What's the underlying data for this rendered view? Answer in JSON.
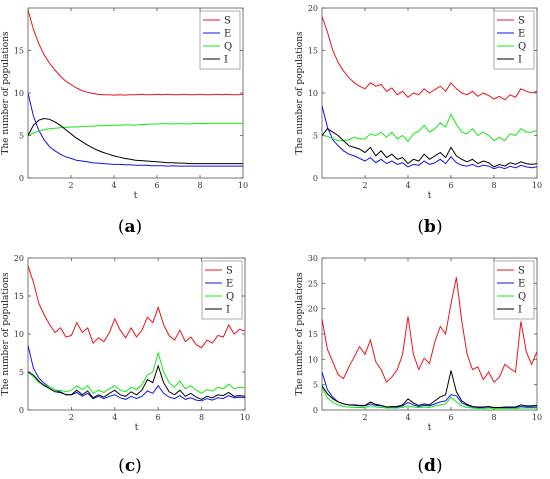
{
  "panel_labels": [
    "a",
    "b",
    "c",
    "d"
  ],
  "colors": {
    "S": "#e8141e",
    "E": "#1414e8",
    "Q": "#14e814",
    "I": "#000000"
  },
  "chart_data": [
    {
      "type": "line",
      "panel": "a",
      "xlabel": "t",
      "ylabel": "The number of populations",
      "xlim": [
        0,
        10
      ],
      "ylim": [
        0,
        20
      ],
      "xticks": [
        2,
        4,
        6,
        8,
        10
      ],
      "yticks": [
        0,
        5,
        10,
        15
      ],
      "legend": "top-right",
      "grid": false,
      "x": [
        0,
        0.25,
        0.5,
        0.75,
        1,
        1.25,
        1.5,
        1.75,
        2,
        2.25,
        2.5,
        2.75,
        3,
        3.25,
        3.5,
        3.75,
        4,
        4.25,
        4.5,
        4.75,
        5,
        5.25,
        5.5,
        5.75,
        6,
        6.25,
        6.5,
        6.75,
        7,
        7.25,
        7.5,
        7.75,
        8,
        8.25,
        8.5,
        8.75,
        9,
        9.25,
        9.5,
        9.75,
        10
      ],
      "series": [
        {
          "name": "S",
          "values": [
            19.8,
            17.5,
            15.8,
            14.5,
            13.5,
            12.7,
            12.0,
            11.4,
            11.0,
            10.6,
            10.3,
            10.1,
            9.95,
            9.85,
            9.8,
            9.8,
            9.75,
            9.8,
            9.75,
            9.8,
            9.8,
            9.85,
            9.8,
            9.8,
            9.85,
            9.8,
            9.85,
            9.8,
            9.8,
            9.85,
            9.8,
            9.8,
            9.85,
            9.8,
            9.8,
            9.85,
            9.8,
            9.85,
            9.8,
            9.8,
            9.85
          ]
        },
        {
          "name": "E",
          "values": [
            10.0,
            7.3,
            5.6,
            4.5,
            3.7,
            3.2,
            2.8,
            2.5,
            2.3,
            2.1,
            2.0,
            1.9,
            1.8,
            1.75,
            1.7,
            1.65,
            1.6,
            1.6,
            1.55,
            1.55,
            1.5,
            1.5,
            1.5,
            1.45,
            1.45,
            1.45,
            1.4,
            1.45,
            1.4,
            1.4,
            1.4,
            1.4,
            1.4,
            1.4,
            1.4,
            1.4,
            1.4,
            1.4,
            1.4,
            1.4,
            1.4
          ]
        },
        {
          "name": "Q",
          "values": [
            5.0,
            5.3,
            5.5,
            5.7,
            5.8,
            5.85,
            5.9,
            5.95,
            6.0,
            6.0,
            6.05,
            6.1,
            6.1,
            6.15,
            6.15,
            6.2,
            6.2,
            6.2,
            6.25,
            6.25,
            6.2,
            6.3,
            6.3,
            6.35,
            6.35,
            6.4,
            6.4,
            6.35,
            6.4,
            6.4,
            6.35,
            6.4,
            6.45,
            6.4,
            6.45,
            6.45,
            6.45,
            6.45,
            6.45,
            6.45,
            6.45
          ]
        },
        {
          "name": "I",
          "values": [
            5.0,
            6.2,
            6.8,
            7.0,
            6.9,
            6.6,
            6.2,
            5.7,
            5.2,
            4.7,
            4.3,
            3.9,
            3.55,
            3.25,
            3.0,
            2.8,
            2.6,
            2.45,
            2.3,
            2.2,
            2.1,
            2.05,
            2.0,
            1.95,
            1.9,
            1.85,
            1.8,
            1.8,
            1.75,
            1.75,
            1.7,
            1.7,
            1.7,
            1.7,
            1.7,
            1.7,
            1.7,
            1.7,
            1.7,
            1.7,
            1.7
          ]
        }
      ]
    },
    {
      "type": "line",
      "panel": "b",
      "xlabel": "t",
      "ylabel": "The number of populations",
      "xlim": [
        0,
        10
      ],
      "ylim": [
        0,
        20
      ],
      "xticks": [
        2,
        4,
        6,
        8,
        10
      ],
      "yticks": [
        0,
        5,
        10,
        15,
        20
      ],
      "legend": "top-right",
      "grid": false,
      "x": [
        0,
        0.25,
        0.5,
        0.75,
        1,
        1.25,
        1.5,
        1.75,
        2,
        2.25,
        2.5,
        2.75,
        3,
        3.25,
        3.5,
        3.75,
        4,
        4.25,
        4.5,
        4.75,
        5,
        5.25,
        5.5,
        5.75,
        6,
        6.25,
        6.5,
        6.75,
        7,
        7.25,
        7.5,
        7.75,
        8,
        8.25,
        8.5,
        8.75,
        9,
        9.25,
        9.5,
        9.75,
        10
      ],
      "series": [
        {
          "name": "S",
          "values": [
            19.0,
            17.2,
            15.0,
            13.6,
            12.6,
            11.8,
            11.2,
            10.8,
            10.5,
            11.2,
            10.8,
            11.0,
            10.2,
            10.6,
            9.8,
            10.2,
            9.5,
            10.0,
            9.8,
            10.5,
            10.0,
            10.4,
            10.8,
            10.2,
            11.2,
            10.5,
            10.0,
            9.8,
            10.2,
            9.6,
            10.0,
            9.7,
            9.3,
            9.6,
            9.2,
            9.8,
            9.5,
            10.5,
            10.2,
            10.0,
            10.2
          ]
        },
        {
          "name": "E",
          "values": [
            8.5,
            6.0,
            4.5,
            3.8,
            3.2,
            2.8,
            2.6,
            2.3,
            2.0,
            2.4,
            1.8,
            2.2,
            1.7,
            2.0,
            1.6,
            1.8,
            1.3,
            1.6,
            1.5,
            2.0,
            1.6,
            1.8,
            2.2,
            1.7,
            2.5,
            1.8,
            1.5,
            1.4,
            1.6,
            1.3,
            1.5,
            1.4,
            1.1,
            1.3,
            1.1,
            1.4,
            1.2,
            1.5,
            1.3,
            1.2,
            1.3
          ]
        },
        {
          "name": "Q",
          "values": [
            5.0,
            4.9,
            4.6,
            4.4,
            4.4,
            4.5,
            4.8,
            4.6,
            4.6,
            5.2,
            5.0,
            5.4,
            4.8,
            5.4,
            4.6,
            5.0,
            4.3,
            5.2,
            5.5,
            6.2,
            5.4,
            5.8,
            6.5,
            6.0,
            7.5,
            6.3,
            5.4,
            5.2,
            5.8,
            5.0,
            5.4,
            5.0,
            4.4,
            4.8,
            4.4,
            5.2,
            5.0,
            5.8,
            5.4,
            5.4,
            5.6
          ]
        },
        {
          "name": "I",
          "values": [
            5.0,
            5.8,
            5.4,
            5.0,
            4.4,
            3.8,
            3.6,
            3.4,
            3.0,
            3.6,
            2.6,
            3.2,
            2.4,
            2.8,
            2.2,
            2.4,
            1.7,
            2.2,
            2.0,
            2.8,
            2.2,
            2.6,
            3.0,
            2.4,
            3.6,
            2.6,
            2.2,
            1.9,
            2.2,
            1.7,
            2.0,
            1.8,
            1.3,
            1.6,
            1.4,
            1.8,
            1.6,
            1.9,
            1.7,
            1.6,
            1.7
          ]
        }
      ]
    },
    {
      "type": "line",
      "panel": "c",
      "xlabel": "t",
      "ylabel": "The number of populations",
      "xlim": [
        0,
        10
      ],
      "ylim": [
        0,
        20
      ],
      "xticks": [
        2,
        4,
        6,
        8,
        10
      ],
      "yticks": [
        0,
        5,
        10,
        15,
        20
      ],
      "legend": "top-right",
      "grid": false,
      "x": [
        0,
        0.25,
        0.5,
        0.75,
        1,
        1.25,
        1.5,
        1.75,
        2,
        2.25,
        2.5,
        2.75,
        3,
        3.25,
        3.5,
        3.75,
        4,
        4.25,
        4.5,
        4.75,
        5,
        5.25,
        5.5,
        5.75,
        6,
        6.25,
        6.5,
        6.75,
        7,
        7.25,
        7.5,
        7.75,
        8,
        8.25,
        8.5,
        8.75,
        9,
        9.25,
        9.5,
        9.75,
        10
      ],
      "series": [
        {
          "name": "S",
          "values": [
            19.0,
            16.8,
            14.0,
            12.5,
            11.2,
            10.2,
            10.8,
            9.6,
            9.8,
            11.5,
            10.2,
            10.8,
            8.8,
            9.5,
            9.0,
            10.2,
            12.0,
            10.5,
            9.5,
            10.8,
            9.6,
            10.5,
            12.2,
            11.5,
            13.5,
            11.2,
            9.8,
            9.2,
            10.5,
            9.0,
            9.6,
            8.6,
            8.2,
            9.2,
            8.8,
            9.8,
            9.6,
            11.2,
            10.0,
            10.6,
            10.4
          ]
        },
        {
          "name": "E",
          "values": [
            8.5,
            5.5,
            4.2,
            3.5,
            3.0,
            2.6,
            2.4,
            2.0,
            2.0,
            2.3,
            1.8,
            2.2,
            1.5,
            1.8,
            1.5,
            1.8,
            2.0,
            1.6,
            1.4,
            1.8,
            1.5,
            1.8,
            2.5,
            2.2,
            3.2,
            2.2,
            1.7,
            1.5,
            1.9,
            1.4,
            1.6,
            1.3,
            1.2,
            1.5,
            1.3,
            1.6,
            1.5,
            1.9,
            1.6,
            1.7,
            1.6
          ]
        },
        {
          "name": "Q",
          "values": [
            5.0,
            4.4,
            3.6,
            3.3,
            3.0,
            2.6,
            2.6,
            2.4,
            2.6,
            3.2,
            2.7,
            3.2,
            2.2,
            2.6,
            2.3,
            2.8,
            3.2,
            2.6,
            2.4,
            3.0,
            2.7,
            3.3,
            4.6,
            5.0,
            7.5,
            5.0,
            3.6,
            3.0,
            3.8,
            2.8,
            3.2,
            2.6,
            2.2,
            2.7,
            2.5,
            3.0,
            2.8,
            3.4,
            2.8,
            3.0,
            2.9
          ]
        },
        {
          "name": "I",
          "values": [
            5.0,
            4.6,
            3.8,
            3.2,
            2.8,
            2.4,
            2.3,
            2.0,
            2.0,
            2.6,
            2.0,
            2.5,
            1.6,
            2.0,
            1.7,
            2.2,
            2.6,
            2.0,
            1.8,
            2.4,
            2.0,
            2.6,
            4.0,
            3.6,
            5.8,
            3.6,
            2.4,
            2.0,
            2.6,
            1.8,
            2.2,
            1.7,
            1.4,
            1.8,
            1.6,
            2.0,
            1.9,
            2.3,
            1.8,
            1.9,
            1.8
          ]
        }
      ]
    },
    {
      "type": "line",
      "panel": "d",
      "xlabel": "t",
      "ylabel": "The number of populations",
      "xlim": [
        0,
        10
      ],
      "ylim": [
        0,
        30
      ],
      "xticks": [
        2,
        4,
        6,
        8,
        10
      ],
      "yticks": [
        0,
        5,
        10,
        15,
        20,
        25,
        30
      ],
      "legend": "top-right",
      "grid": false,
      "x": [
        0,
        0.25,
        0.5,
        0.75,
        1,
        1.25,
        1.5,
        1.75,
        2,
        2.25,
        2.5,
        2.75,
        3,
        3.25,
        3.5,
        3.75,
        4,
        4.25,
        4.5,
        4.75,
        5,
        5.25,
        5.5,
        5.75,
        6,
        6.25,
        6.5,
        6.75,
        7,
        7.25,
        7.5,
        7.75,
        8,
        8.25,
        8.5,
        8.75,
        9,
        9.25,
        9.5,
        9.75,
        10
      ],
      "series": [
        {
          "name": "S",
          "values": [
            18.0,
            12.0,
            9.5,
            7.0,
            6.2,
            8.5,
            10.5,
            12.5,
            11.0,
            13.8,
            9.5,
            8.0,
            5.5,
            6.5,
            8.0,
            11.0,
            18.5,
            11.0,
            8.0,
            10.2,
            9.2,
            13.5,
            16.5,
            15.0,
            21.0,
            26.2,
            17.5,
            11.0,
            8.0,
            8.5,
            6.0,
            7.5,
            5.5,
            6.5,
            9.0,
            8.2,
            7.5,
            17.5,
            11.5,
            9.0,
            11.5
          ]
        },
        {
          "name": "E",
          "values": [
            7.5,
            4.0,
            2.5,
            1.6,
            1.2,
            1.0,
            0.9,
            0.8,
            0.8,
            1.2,
            0.9,
            0.8,
            0.6,
            0.6,
            0.6,
            0.8,
            1.5,
            1.0,
            0.7,
            0.9,
            0.8,
            1.2,
            1.6,
            1.8,
            3.0,
            2.8,
            1.4,
            0.9,
            0.6,
            0.5,
            0.5,
            0.6,
            0.4,
            0.4,
            0.5,
            0.5,
            0.5,
            0.7,
            0.6,
            0.6,
            0.6
          ]
        },
        {
          "name": "Q",
          "values": [
            4.5,
            2.4,
            1.5,
            1.0,
            0.7,
            0.6,
            0.5,
            0.5,
            0.5,
            0.8,
            0.6,
            0.5,
            0.4,
            0.4,
            0.4,
            0.5,
            0.8,
            0.6,
            0.5,
            0.6,
            0.5,
            0.8,
            1.0,
            1.2,
            2.5,
            1.6,
            0.8,
            0.5,
            0.4,
            0.3,
            0.3,
            0.4,
            0.3,
            0.3,
            0.3,
            0.3,
            0.3,
            0.4,
            0.4,
            0.4,
            0.4
          ]
        },
        {
          "name": "I",
          "values": [
            4.8,
            3.2,
            2.2,
            1.6,
            1.2,
            1.0,
            1.0,
            0.9,
            0.9,
            1.6,
            1.1,
            0.9,
            0.6,
            0.7,
            0.7,
            1.0,
            2.2,
            1.4,
            0.9,
            1.2,
            1.0,
            1.8,
            2.6,
            3.0,
            7.8,
            3.6,
            1.8,
            1.1,
            0.7,
            0.6,
            0.6,
            0.7,
            0.5,
            0.5,
            0.6,
            0.6,
            0.6,
            1.0,
            0.8,
            0.8,
            0.9
          ]
        }
      ]
    }
  ]
}
